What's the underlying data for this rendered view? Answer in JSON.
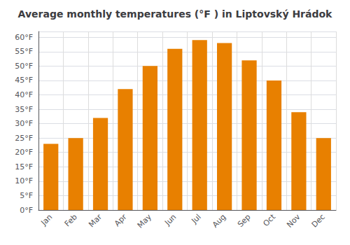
{
  "chart_data": {
    "type": "bar",
    "title": "Average monthly temperatures (°F ) in Liptovský Hrádok",
    "categories": [
      "Jan",
      "Feb",
      "Mar",
      "Apr",
      "May",
      "Jun",
      "Jul",
      "Aug",
      "Sep",
      "Oct",
      "Nov",
      "Dec"
    ],
    "values": [
      23,
      25,
      32,
      42,
      50,
      56,
      59,
      58,
      52,
      45,
      34,
      25
    ],
    "color": "#E88000",
    "ylim": [
      0,
      62
    ],
    "yticks": [
      {
        "value": 0,
        "label": "0°F"
      },
      {
        "value": 5,
        "label": "5°F"
      },
      {
        "value": 10,
        "label": "10°F"
      },
      {
        "value": 15,
        "label": "15°F"
      },
      {
        "value": 20,
        "label": "20°F"
      },
      {
        "value": 25,
        "label": "25°F"
      },
      {
        "value": 30,
        "label": "30°F"
      },
      {
        "value": 35,
        "label": "35°F"
      },
      {
        "value": 40,
        "label": "40°F"
      },
      {
        "value": 45,
        "label": "45°F"
      },
      {
        "value": 50,
        "label": "50°F"
      },
      {
        "value": 55,
        "label": "55°F"
      },
      {
        "value": 60,
        "label": "60°F"
      }
    ],
    "grid": true
  }
}
